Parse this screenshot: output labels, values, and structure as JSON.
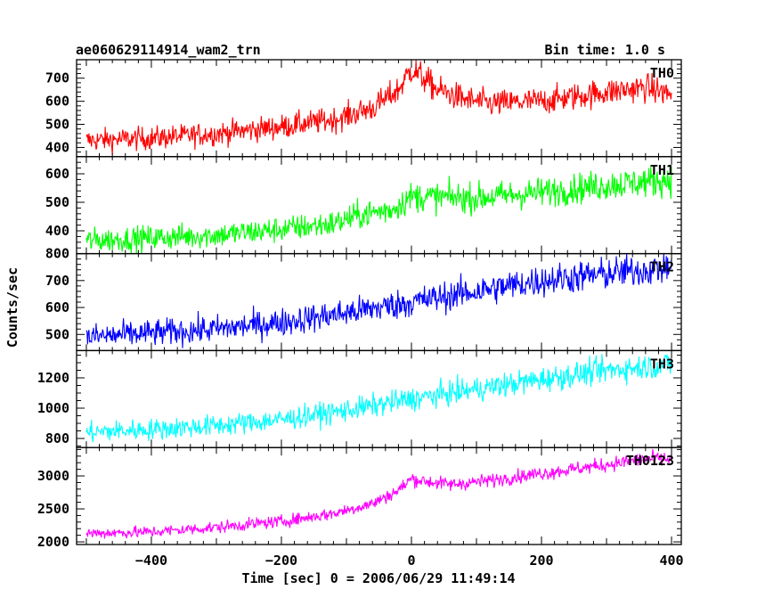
{
  "header": {
    "title": "ae060629114914_wam2_trn",
    "bin_time": "Bin time: 1.0 s"
  },
  "axes": {
    "ylabel": "Counts/sec",
    "xlabel": "Time [sec] 0 = 2006/06/29 11:49:14",
    "xlim": [
      -515,
      415
    ],
    "xticks": [
      -400,
      -200,
      0,
      200,
      400
    ],
    "x_minor_step": 20
  },
  "chart_data": [
    {
      "type": "line",
      "name": "TH0",
      "color": "#ff0000",
      "ylim": [
        360,
        780
      ],
      "yticks": [
        400,
        500,
        600,
        700
      ],
      "y_minor_step": 20,
      "noise": 25,
      "series": [
        {
          "x": -500,
          "y": 430
        },
        {
          "x": -400,
          "y": 440
        },
        {
          "x": -300,
          "y": 460
        },
        {
          "x": -200,
          "y": 490
        },
        {
          "x": -120,
          "y": 520
        },
        {
          "x": -60,
          "y": 570
        },
        {
          "x": -20,
          "y": 650
        },
        {
          "x": 0,
          "y": 740
        },
        {
          "x": 10,
          "y": 720
        },
        {
          "x": 40,
          "y": 650
        },
        {
          "x": 80,
          "y": 610
        },
        {
          "x": 120,
          "y": 590
        },
        {
          "x": 200,
          "y": 600
        },
        {
          "x": 300,
          "y": 640
        },
        {
          "x": 360,
          "y": 660
        },
        {
          "x": 400,
          "y": 630
        }
      ]
    },
    {
      "type": "line",
      "name": "TH1",
      "color": "#00ff00",
      "ylim": [
        320,
        660
      ],
      "yticks": [
        400,
        500,
        600
      ],
      "y_minor_step": 20,
      "noise": 22,
      "series": [
        {
          "x": -500,
          "y": 365
        },
        {
          "x": -400,
          "y": 375
        },
        {
          "x": -300,
          "y": 385
        },
        {
          "x": -200,
          "y": 405
        },
        {
          "x": -120,
          "y": 425
        },
        {
          "x": -80,
          "y": 455
        },
        {
          "x": -30,
          "y": 475
        },
        {
          "x": 0,
          "y": 520
        },
        {
          "x": 100,
          "y": 515
        },
        {
          "x": 200,
          "y": 535
        },
        {
          "x": 300,
          "y": 560
        },
        {
          "x": 400,
          "y": 580
        }
      ]
    },
    {
      "type": "line",
      "name": "TH2",
      "color": "#0000ff",
      "ylim": [
        440,
        800
      ],
      "yticks": [
        500,
        600,
        700,
        800
      ],
      "y_minor_step": 20,
      "noise": 25,
      "series": [
        {
          "x": -500,
          "y": 490
        },
        {
          "x": -400,
          "y": 505
        },
        {
          "x": -300,
          "y": 520
        },
        {
          "x": -200,
          "y": 545
        },
        {
          "x": -100,
          "y": 580
        },
        {
          "x": 0,
          "y": 620
        },
        {
          "x": 100,
          "y": 660
        },
        {
          "x": 200,
          "y": 700
        },
        {
          "x": 300,
          "y": 725
        },
        {
          "x": 400,
          "y": 750
        }
      ]
    },
    {
      "type": "line",
      "name": "TH3",
      "color": "#00ffff",
      "ylim": [
        740,
        1380
      ],
      "yticks": [
        800,
        1000,
        1200
      ],
      "y_minor_step": 50,
      "noise": 35,
      "series": [
        {
          "x": -500,
          "y": 840
        },
        {
          "x": -400,
          "y": 860
        },
        {
          "x": -300,
          "y": 885
        },
        {
          "x": -200,
          "y": 925
        },
        {
          "x": -100,
          "y": 985
        },
        {
          "x": 0,
          "y": 1060
        },
        {
          "x": 100,
          "y": 1125
        },
        {
          "x": 200,
          "y": 1190
        },
        {
          "x": 300,
          "y": 1250
        },
        {
          "x": 400,
          "y": 1290
        }
      ]
    },
    {
      "type": "line",
      "name": "TH0123",
      "color": "#ff00ff",
      "ylim": [
        1960,
        3430
      ],
      "yticks": [
        2000,
        2500,
        3000
      ],
      "y_minor_step": 100,
      "noise": 45,
      "series": [
        {
          "x": -500,
          "y": 2130
        },
        {
          "x": -400,
          "y": 2150
        },
        {
          "x": -300,
          "y": 2220
        },
        {
          "x": -200,
          "y": 2310
        },
        {
          "x": -120,
          "y": 2430
        },
        {
          "x": -60,
          "y": 2580
        },
        {
          "x": -20,
          "y": 2780
        },
        {
          "x": 0,
          "y": 2960
        },
        {
          "x": 20,
          "y": 2920
        },
        {
          "x": 60,
          "y": 2870
        },
        {
          "x": 120,
          "y": 2930
        },
        {
          "x": 200,
          "y": 3040
        },
        {
          "x": 300,
          "y": 3170
        },
        {
          "x": 360,
          "y": 3260
        },
        {
          "x": 400,
          "y": 3250
        }
      ]
    }
  ]
}
